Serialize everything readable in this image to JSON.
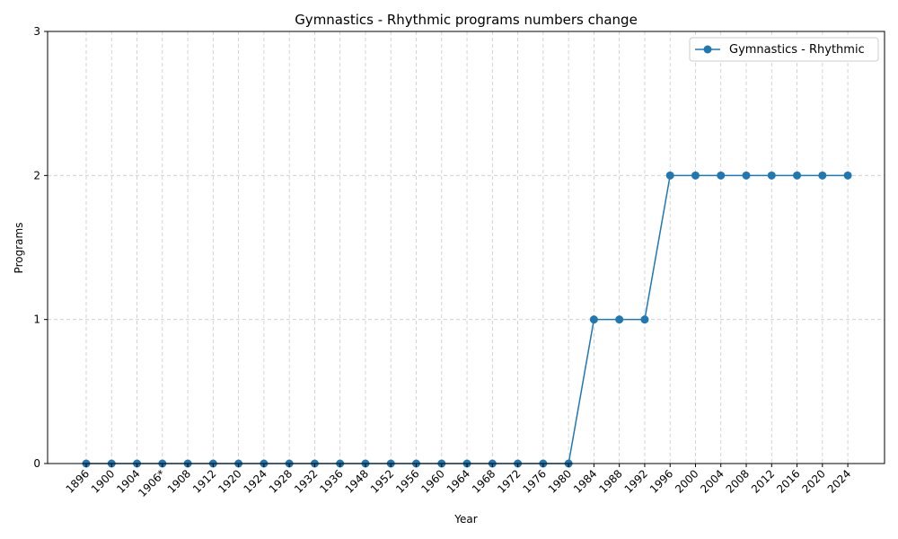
{
  "chart_data": {
    "type": "line",
    "title": "Gymnastics - Rhythmic programs numbers change",
    "xlabel": "Year",
    "ylabel": "Programs",
    "categories": [
      "1896",
      "1900",
      "1904",
      "1906*",
      "1908",
      "1912",
      "1920",
      "1924",
      "1928",
      "1932",
      "1936",
      "1948",
      "1952",
      "1956",
      "1960",
      "1964",
      "1968",
      "1972",
      "1976",
      "1980",
      "1984",
      "1988",
      "1992",
      "1996",
      "2000",
      "2004",
      "2008",
      "2012",
      "2016",
      "2020",
      "2024"
    ],
    "series": [
      {
        "name": "Gymnastics - Rhythmic",
        "color": "#1f77b4",
        "values": [
          0,
          0,
          0,
          0,
          0,
          0,
          0,
          0,
          0,
          0,
          0,
          0,
          0,
          0,
          0,
          0,
          0,
          0,
          0,
          0,
          1,
          1,
          1,
          2,
          2,
          2,
          2,
          2,
          2,
          2,
          2
        ]
      }
    ],
    "ylim": [
      0,
      3
    ],
    "yticks": [
      "0",
      "1",
      "2",
      "3"
    ],
    "grid": true,
    "legend_position": "top-right"
  }
}
